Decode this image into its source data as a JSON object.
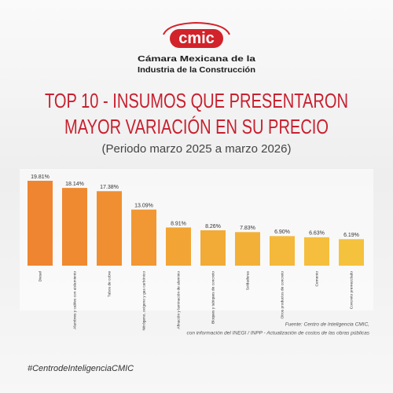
{
  "chart_data": {
    "type": "bar",
    "organization": [
      "Cámara Mexicana de la",
      "Industria de la Construcción"
    ],
    "logo_text": "cmic",
    "title": [
      "TOP 10 - INSUMOS QUE PRESENTARON",
      "MAYOR VARIACIÓN EN SU PRECIO"
    ],
    "subtitle": "(Periodo marzo 2025 a marzo 2026)",
    "categories": [
      "Diesel",
      "Alambres y cables con aislamiento",
      "Tubos de cobre",
      "Nitrógeno, oxígeno y gas carbónico",
      "Afinación y laminación de aluminio",
      "Bloques y tabiques de concreto",
      "Soldaduras",
      "Otros productos de concreto",
      "Cemento",
      "Concreto premezclado"
    ],
    "values": [
      19.81,
      18.14,
      17.38,
      13.09,
      8.91,
      8.26,
      7.83,
      6.9,
      6.63,
      6.19
    ],
    "value_labels": [
      "19.81%",
      "18.14%",
      "17.38%",
      "13.09%",
      "8.91%",
      "8.26%",
      "7.83%",
      "6.90%",
      "6.63%",
      "6.19%"
    ],
    "colors": [
      "#ef8530",
      "#ef8a30",
      "#f08f31",
      "#f19733",
      "#f2a535",
      "#f2ab36",
      "#f3b038",
      "#f4b83a",
      "#f5be3c",
      "#f5c23d"
    ],
    "source": [
      "Fuente: Centro de Inteligencia CMIC,",
      "con información del INEGI / INPP - Actualización de costos de las obras públicas"
    ],
    "hashtag": "#CentrodeInteligenciaCMIC"
  }
}
